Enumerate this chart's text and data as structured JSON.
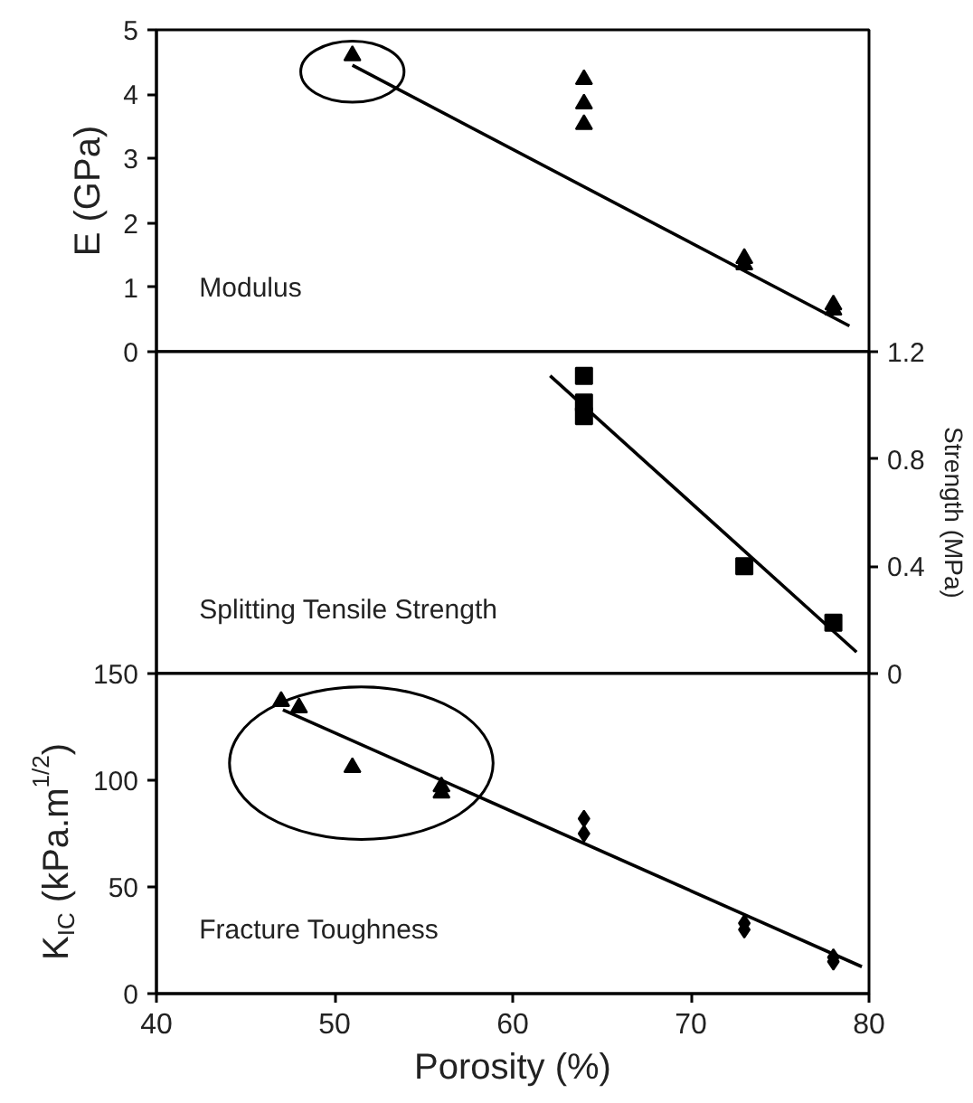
{
  "chart_data": [
    {
      "type": "scatter",
      "ylabel": "E (GPa)",
      "xlim": [
        40,
        80
      ],
      "xticks": [
        40,
        50,
        60,
        70,
        80
      ],
      "ylim": [
        0,
        5
      ],
      "yticks": [
        0,
        1,
        2,
        3,
        4,
        5
      ],
      "tick_labels": "y",
      "grid": false,
      "annotations": [
        "Modulus"
      ],
      "series": [
        {
          "color": "#000000",
          "marker": "triangle",
          "x": [
            51
          ],
          "values": [
            4.6
          ]
        },
        {
          "color": "#000000",
          "marker": "triangle",
          "x": [
            64,
            64,
            64
          ],
          "values": [
            4.23,
            3.85,
            3.53
          ]
        },
        {
          "color": "#000000",
          "marker": "triangle",
          "x": [
            73,
            73,
            78,
            78
          ],
          "values": [
            1.45,
            1.35,
            0.73,
            0.65
          ]
        },
        {
          "type": "line",
          "color": "#000000",
          "x": [
            51,
            78.9
          ],
          "values": [
            4.45,
            0.4
          ]
        }
      ]
    },
    {
      "type": "scatter",
      "y2label": "Strength (MPa)",
      "xlim": [
        40,
        80
      ],
      "xticks": [
        40,
        50,
        60,
        70,
        80
      ],
      "y2lim": [
        0,
        1.2
      ],
      "y2ticks": [
        0,
        0.4,
        0.8,
        1.2
      ],
      "tick_labels": "y",
      "grid": false,
      "annotations": [
        "Splitting Tensile Strength"
      ],
      "series": [
        {
          "color": "#000000",
          "marker": "square",
          "axis": "y2",
          "x": [
            64,
            64,
            64,
            73,
            78
          ],
          "values": [
            1.11,
            1.01,
            0.96,
            0.4,
            0.19
          ]
        },
        {
          "type": "line",
          "color": "#000000",
          "axis": "y2",
          "x": [
            62.1,
            79.3
          ],
          "values": [
            1.11,
            0.08
          ]
        }
      ]
    },
    {
      "type": "scatter",
      "xlabel": "Porosity (%)",
      "ylabel": "K$_{IC}$ (kPa.m$^{1/2}$)",
      "xlim": [
        40,
        80
      ],
      "xticks": [
        40,
        50,
        60,
        70,
        80
      ],
      "ylim": [
        0,
        150
      ],
      "yticks": [
        0,
        50,
        100,
        150
      ],
      "grid": false,
      "annotations": [
        "Fracture Toughness"
      ],
      "series": [
        {
          "color": "#000000",
          "marker": "triangle",
          "x": [
            47,
            48,
            51,
            56,
            56
          ],
          "values": [
            137,
            134,
            106,
            97,
            94
          ]
        },
        {
          "color": "#000000",
          "marker": "diamond",
          "x": [
            64,
            64,
            73,
            73,
            78,
            78
          ],
          "values": [
            82,
            75,
            33,
            30,
            17,
            15
          ]
        },
        {
          "type": "line",
          "color": "#000000",
          "x": [
            47.1,
            79.6
          ],
          "values": [
            133,
            12.6
          ]
        }
      ]
    }
  ]
}
